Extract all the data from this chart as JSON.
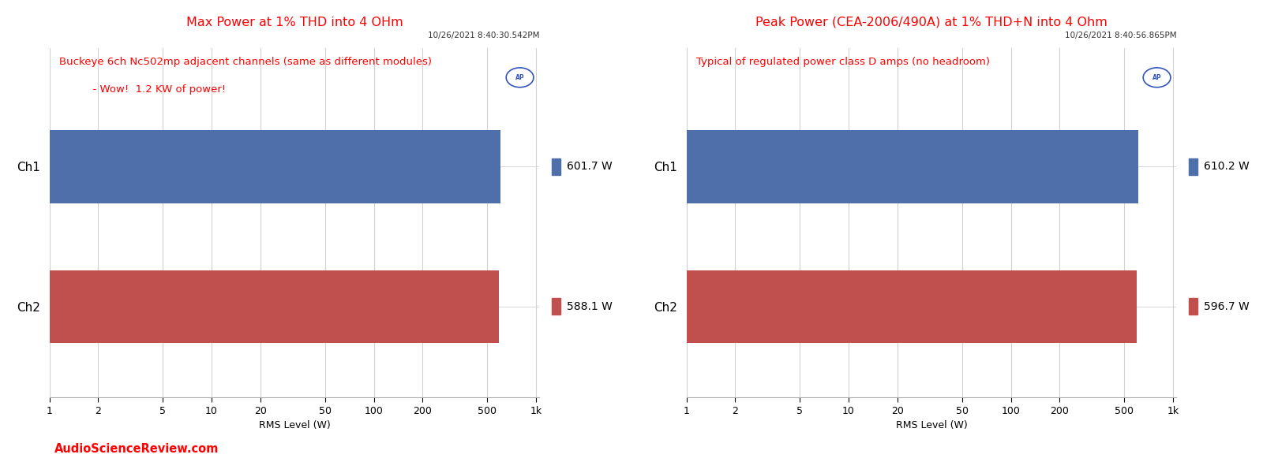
{
  "left_chart": {
    "title": "Max Power at 1% THD into 4 OHm",
    "title_color": "#ff0000",
    "timestamp": "10/26/2021 8:40:30.542PM",
    "annotation_line1": "Buckeye 6ch Nc502mp adjacent channels (same as different modules)",
    "annotation_line2": "          - Wow!  1.2 KW of power!",
    "annotation_color": "#ff0000",
    "watermark": "AudioScienceReview.com",
    "watermark_color": "#ff0000",
    "channels": [
      "Ch1",
      "Ch2"
    ],
    "values": [
      601.7,
      588.1
    ],
    "colors": [
      "#4f6fab",
      "#c0504d"
    ],
    "xlabel": "RMS Level (W)"
  },
  "right_chart": {
    "title": "Peak Power (CEA-2006/490A) at 1% THD+N into 4 Ohm",
    "title_color": "#ff0000",
    "timestamp": "10/26/2021 8:40:56.865PM",
    "annotation_line1": "Typical of regulated power class D amps (no headroom)",
    "annotation_line2": "",
    "annotation_color": "#ff0000",
    "watermark": "",
    "watermark_color": "#ff0000",
    "channels": [
      "Ch1",
      "Ch2"
    ],
    "values": [
      610.2,
      596.7
    ],
    "colors": [
      "#4f6fab",
      "#c0504d"
    ],
    "xlabel": "RMS Level (W)"
  },
  "xticks": [
    1,
    2,
    5,
    10,
    20,
    50,
    100,
    200,
    500,
    1000
  ],
  "xticklabels": [
    "1",
    "2",
    "5",
    "10",
    "20",
    "50",
    "100",
    "200",
    "500",
    "1k"
  ],
  "bg_color": "#ffffff",
  "grid_color": "#d0d0d0",
  "ap_logo_color": "#3355bb",
  "bar_height": 0.52,
  "y_ch1": 1.0,
  "y_ch2": 0.0,
  "ylim_bottom": -0.65,
  "ylim_top": 1.85
}
